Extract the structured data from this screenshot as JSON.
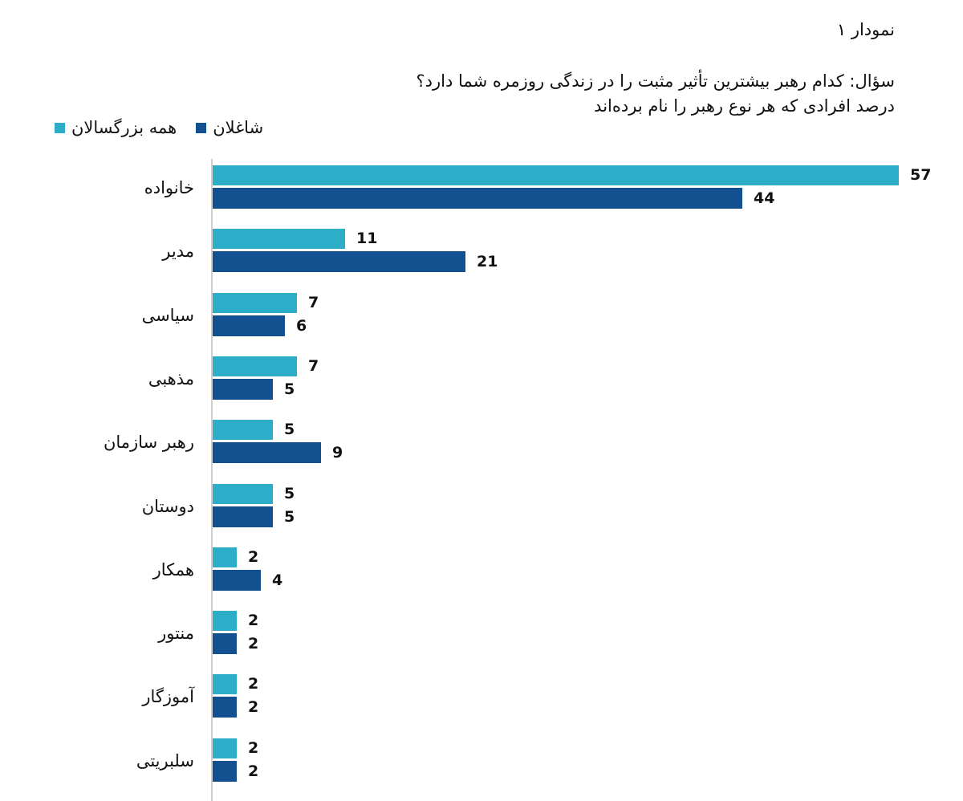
{
  "header": {
    "figure_label": "نمودار ۱",
    "question": "سؤال: کدام رهبر بیشترین تأثیر مثبت را در زندگی روزمره شما دارد؟",
    "subtitle": "درصد افرادی که هر نوع رهبر را نام برده‌اند"
  },
  "legend": {
    "employed": "شاغلان",
    "all_adults": "همه بزرگسالان"
  },
  "colors": {
    "all_adults": "#2CAEC9",
    "employed": "#12508F",
    "axis": "#CFCFCF"
  },
  "chart_data": {
    "type": "bar",
    "orientation": "horizontal",
    "title": "سؤال: کدام رهبر بیشترین تأثیر مثبت را در زندگی روزمره شما دارد؟",
    "subtitle": "درصد افرادی که هر نوع رهبر را نام برده‌اند",
    "xlabel": "",
    "ylabel": "",
    "legend_position": "top-left",
    "grid": false,
    "xlim": [
      0,
      60
    ],
    "categories": [
      "خانواده",
      "مدیر",
      "سیاسی",
      "مذهبی",
      "رهبر سازمان",
      "دوستان",
      "همکار",
      "منتور",
      "آموزگار",
      "سلبریتی"
    ],
    "series": [
      {
        "name": "همه بزرگسالان",
        "color": "#2CAEC9",
        "values": [
          57,
          11,
          7,
          7,
          5,
          5,
          2,
          2,
          2,
          2
        ]
      },
      {
        "name": "شاغلان",
        "color": "#12508F",
        "values": [
          44,
          21,
          6,
          5,
          9,
          5,
          4,
          2,
          2,
          2
        ]
      }
    ]
  }
}
